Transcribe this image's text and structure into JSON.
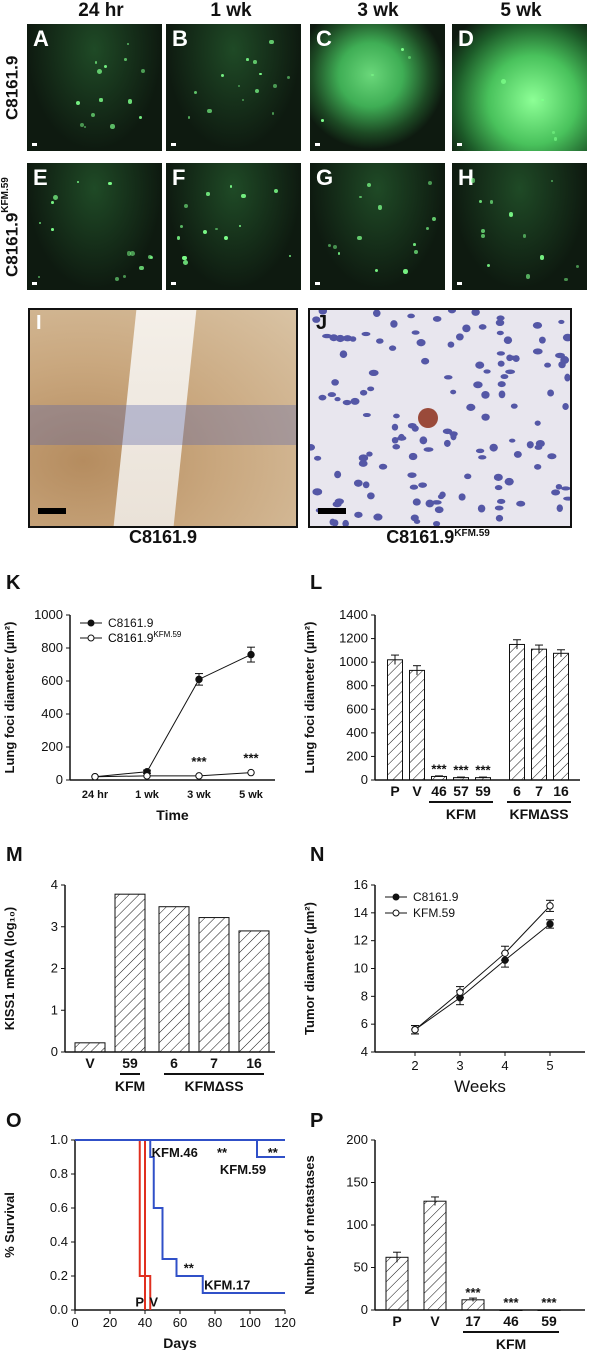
{
  "headers": [
    "24 hr",
    "1 wk",
    "3 wk",
    "5 wk"
  ],
  "rows": [
    {
      "name": "C8161.9",
      "sup": ""
    },
    {
      "name": "C8161.9",
      "sup": "KFM.59"
    }
  ],
  "micro_panels": [
    "A",
    "B",
    "C",
    "D",
    "E",
    "F",
    "G",
    "H"
  ],
  "histo": [
    {
      "label": "I",
      "caption": "C8161.9",
      "caption_sup": ""
    },
    {
      "label": "J",
      "caption": "C8161.9",
      "caption_sup": "KFM.59"
    }
  ],
  "colors": {
    "fluor_bg": "#0e1a10",
    "fluor_green": "#7dff8a",
    "blue_line": "#3050c8",
    "red_line": "#e03020",
    "histo_brown": "#c9a77e",
    "histo_blue": "#3b3f9a"
  },
  "chart_data": [
    {
      "panel": "K",
      "type": "line",
      "ylabel": "Lung foci diameter (µm²)",
      "xlabel": "Time",
      "categories": [
        "24 hr",
        "1 wk",
        "3 wk",
        "5 wk"
      ],
      "ylim": [
        0,
        1000
      ],
      "yticks": [
        0,
        200,
        400,
        600,
        800,
        1000
      ],
      "series": [
        {
          "name": "C8161.9",
          "values": [
            20,
            50,
            610,
            760
          ],
          "err": [
            5,
            10,
            35,
            45
          ],
          "marker": "filled"
        },
        {
          "name": "C8161.9KFM.59",
          "values": [
            20,
            25,
            25,
            45
          ],
          "err": [
            3,
            3,
            3,
            5
          ],
          "marker": "open"
        }
      ],
      "annotations": [
        {
          "x": 2,
          "text": "***"
        },
        {
          "x": 3,
          "text": "***"
        }
      ]
    },
    {
      "panel": "L",
      "type": "bar",
      "ylabel": "Lung foci diameter (µm²)",
      "categories": [
        "P",
        "V",
        "46",
        "57",
        "59",
        "6",
        "7",
        "16"
      ],
      "values": [
        1020,
        930,
        30,
        20,
        20,
        1150,
        1110,
        1075
      ],
      "err": [
        40,
        40,
        5,
        5,
        5,
        40,
        35,
        30
      ],
      "ylim": [
        0,
        1400
      ],
      "yticks": [
        0,
        200,
        400,
        600,
        800,
        1000,
        1200,
        1400
      ],
      "groups": [
        {
          "label": "KFM",
          "from": 2,
          "to": 4
        },
        {
          "label": "KFMΔSS",
          "from": 5,
          "to": 7
        }
      ],
      "annotations": [
        {
          "i": 2,
          "text": "***"
        },
        {
          "i": 3,
          "text": "***"
        },
        {
          "i": 4,
          "text": "***"
        }
      ]
    },
    {
      "panel": "M",
      "type": "bar",
      "ylabel": "KISS1 mRNA (log₁₀)",
      "categories": [
        "V",
        "59",
        "6",
        "7",
        "16"
      ],
      "values": [
        0.22,
        3.78,
        3.48,
        3.22,
        2.9
      ],
      "ylim": [
        0,
        4
      ],
      "yticks": [
        0,
        1,
        2,
        3,
        4
      ],
      "groups": [
        {
          "label": "KFM",
          "from": 1,
          "to": 1
        },
        {
          "label": "KFMΔSS",
          "from": 2,
          "to": 4
        }
      ]
    },
    {
      "panel": "N",
      "type": "line",
      "ylabel": "Tumor diameter (µm²)",
      "xlabel": "Weeks",
      "x": [
        2,
        3,
        4,
        5
      ],
      "ylim": [
        4,
        16
      ],
      "yticks": [
        4,
        6,
        8,
        10,
        12,
        14,
        16
      ],
      "series": [
        {
          "name": "C8161.9",
          "values": [
            5.6,
            7.9,
            10.6,
            13.2
          ],
          "err": [
            0.3,
            0.5,
            0.5,
            0.3
          ],
          "marker": "filled"
        },
        {
          "name": "KFM.59",
          "values": [
            5.6,
            8.3,
            11.1,
            14.5
          ],
          "err": [
            0.3,
            0.4,
            0.5,
            0.4
          ],
          "marker": "open"
        }
      ]
    },
    {
      "panel": "O",
      "type": "line",
      "ylabel": "% Survival",
      "xlabel": "Days",
      "xlim": [
        0,
        120
      ],
      "xticks": [
        0,
        20,
        40,
        60,
        80,
        100,
        120
      ],
      "ylim": [
        0,
        1.0
      ],
      "yticks": [
        0.0,
        0.2,
        0.4,
        0.6,
        0.8,
        1.0
      ],
      "series": [
        {
          "name": "P",
          "color": "#e03020",
          "steps": [
            [
              0,
              1.0
            ],
            [
              37,
              1.0
            ],
            [
              37,
              0.2
            ],
            [
              40,
              0.2
            ],
            [
              40,
              0.0
            ]
          ]
        },
        {
          "name": "V",
          "color": "#e03020",
          "steps": [
            [
              0,
              1.0
            ],
            [
              40,
              1.0
            ],
            [
              40,
              0.2
            ],
            [
              43,
              0.2
            ],
            [
              43,
              0.0
            ]
          ]
        },
        {
          "name": "KFM.17",
          "color": "#3050c8",
          "steps": [
            [
              0,
              1.0
            ],
            [
              43,
              1.0
            ],
            [
              43,
              0.9
            ],
            [
              45,
              0.9
            ],
            [
              45,
              0.6
            ],
            [
              50,
              0.6
            ],
            [
              50,
              0.3
            ],
            [
              58,
              0.3
            ],
            [
              58,
              0.2
            ],
            [
              73,
              0.2
            ],
            [
              73,
              0.1
            ],
            [
              120,
              0.1
            ]
          ]
        },
        {
          "name": "KFM.46",
          "color": "#3050c8",
          "steps": [
            [
              0,
              1.0
            ],
            [
              120,
              1.0
            ]
          ]
        },
        {
          "name": "KFM.59",
          "color": "#3050c8",
          "steps": [
            [
              0,
              1.0
            ],
            [
              104,
              1.0
            ],
            [
              104,
              0.9
            ],
            [
              120,
              0.9
            ]
          ]
        }
      ],
      "annotations": [
        {
          "text": "KFM.46",
          "x": 57,
          "y": 0.93
        },
        {
          "text": "**",
          "x": 84,
          "y": 0.93
        },
        {
          "text": "**",
          "x": 113,
          "y": 0.93
        },
        {
          "text": "KFM.59",
          "x": 96,
          "y": 0.83
        },
        {
          "text": "**",
          "x": 65,
          "y": 0.25
        },
        {
          "text": "KFM.17",
          "x": 87,
          "y": 0.15
        },
        {
          "text": "P",
          "x": 37,
          "y": 0.05
        },
        {
          "text": "V",
          "x": 45,
          "y": 0.05
        }
      ]
    },
    {
      "panel": "P",
      "type": "bar",
      "ylabel": "Number of metastases",
      "categories": [
        "P",
        "V",
        "17",
        "46",
        "59"
      ],
      "values": [
        62,
        128,
        12,
        0,
        0
      ],
      "err": [
        6,
        5,
        2,
        0,
        0
      ],
      "ylim": [
        0,
        200
      ],
      "yticks": [
        0,
        50,
        100,
        150,
        200
      ],
      "groups": [
        {
          "label": "KFM",
          "from": 2,
          "to": 4
        }
      ],
      "annotations": [
        {
          "i": 2,
          "text": "***"
        },
        {
          "i": 3,
          "text": "***"
        },
        {
          "i": 4,
          "text": "***"
        }
      ]
    }
  ]
}
